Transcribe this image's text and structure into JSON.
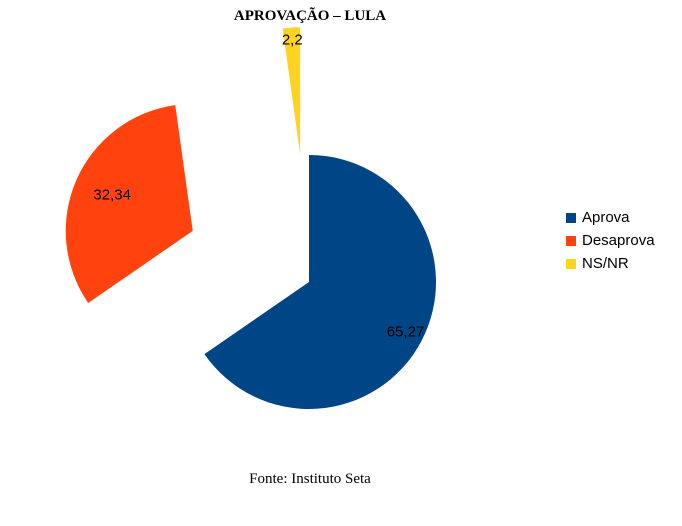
{
  "chart_data": {
    "type": "pie",
    "title": "APROVAÇÃO – LULA",
    "categories": [
      "Aprova",
      "Desaprova",
      "NS/NR"
    ],
    "values": [
      65.27,
      32.34,
      2.2
    ],
    "value_labels": [
      "65,27",
      "32,34",
      "2,2"
    ],
    "colors": [
      "#004586",
      "#ff420e",
      "#ffd320"
    ],
    "exploded": true,
    "legend_position": "right"
  },
  "legend": {
    "items": [
      {
        "label": "Aprova",
        "color": "#004586"
      },
      {
        "label": "Desaprova",
        "color": "#ff420e"
      },
      {
        "label": "NS/NR",
        "color": "#ffd320"
      }
    ]
  },
  "source": "Fonte: Instituto Seta"
}
